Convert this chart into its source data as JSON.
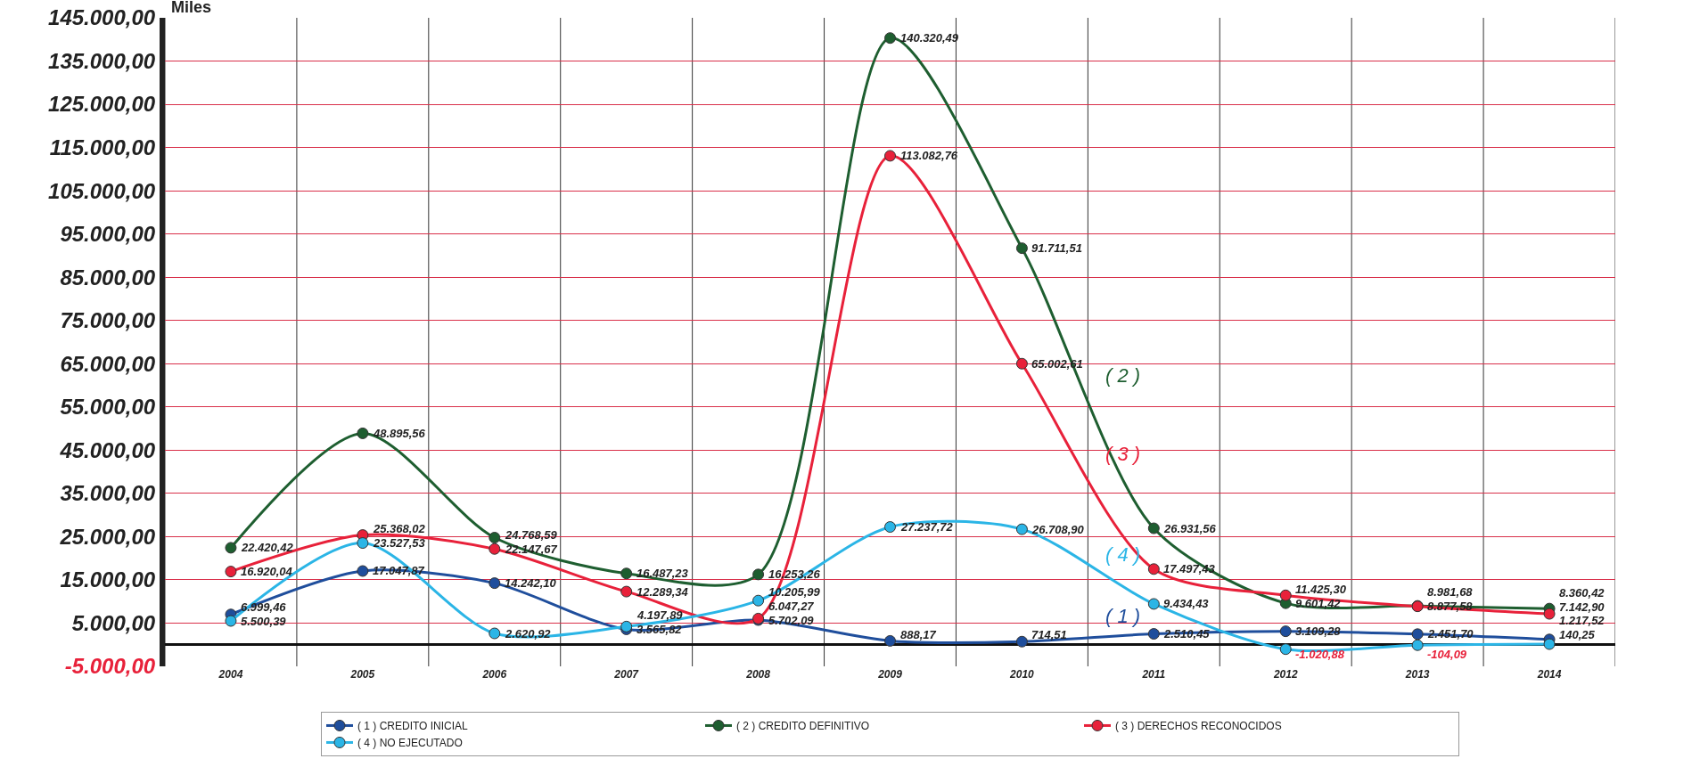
{
  "chart_data": {
    "type": "line",
    "ylabel": "Miles",
    "categories": [
      "2004",
      "2005",
      "2006",
      "2007",
      "2008",
      "2009",
      "2010",
      "2011",
      "2012",
      "2013",
      "2014"
    ],
    "series": [
      {
        "name": "( 1 ) CREDITO INICIAL",
        "color": "#1f4e9c",
        "values": [
          6999.46,
          17047.87,
          14242.1,
          3565.82,
          5702.09,
          888.17,
          714.51,
          2510.45,
          3109.28,
          2451.7,
          1217.52
        ],
        "value_labels": [
          "6.999,46",
          "17.047,87",
          "14.242,10",
          "3.565,82",
          "5.702,09",
          "888,17",
          "714,51",
          "2.510,45",
          "3.109,28",
          "2.451,70",
          "1.217,52"
        ]
      },
      {
        "name": "( 2 ) CREDITO DEFINITIVO",
        "color": "#1e5e30",
        "values": [
          22420.42,
          48895.56,
          24768.59,
          16487.23,
          16253.26,
          140320.49,
          91711.51,
          26931.56,
          9601.42,
          8981.68,
          8360.42
        ],
        "value_labels": [
          "22.420,42",
          "48.895,56",
          "24.768,59",
          "16.487,23",
          "16.253,26",
          "140.320,49",
          "91.711,51",
          "26.931,56",
          "9.601,42",
          "8.981,68",
          "8.360,42"
        ]
      },
      {
        "name": "( 3 ) DERECHOS RECONOCIDOS",
        "color": "#e8213a",
        "values": [
          16920.04,
          25368.02,
          22147.67,
          12289.34,
          6047.27,
          113082.76,
          65002.61,
          17497.43,
          11425.3,
          8877.58,
          7142.9
        ],
        "value_labels": [
          "16.920,04",
          "25.368,02",
          "22.147,67",
          "12.289,34",
          "6.047,27",
          "113.082,76",
          "65.002,61",
          "17.497,43",
          "11.425,30",
          "8.877,58",
          "7.142,90"
        ]
      },
      {
        "name": "( 4 ) NO EJECUTADO",
        "color": "#2bb5e6",
        "values": [
          5500.39,
          23527.53,
          2620.92,
          4197.89,
          10205.99,
          27237.72,
          26708.9,
          9434.43,
          -1020.88,
          -104.09,
          140.25
        ],
        "value_labels": [
          "5.500,39",
          "23.527,53",
          "2.620,92",
          "4.197,89",
          "10.205,99",
          "27.237,72",
          "26.708,90",
          "9.434,43",
          "-1.020,88",
          "-104,09",
          "140,25"
        ]
      }
    ],
    "annotations": [
      "( 1 )",
      "( 2 )",
      "( 3 )",
      "( 4 )"
    ],
    "ylim": [
      -5000,
      145000
    ],
    "yticks": [
      {
        "value": -5000,
        "label": "-5.000,00"
      },
      {
        "value": 5000,
        "label": "5.000,00"
      },
      {
        "value": 15000,
        "label": "15.000,00"
      },
      {
        "value": 25000,
        "label": "25.000,00"
      },
      {
        "value": 35000,
        "label": "35.000,00"
      },
      {
        "value": 45000,
        "label": "45.000,00"
      },
      {
        "value": 55000,
        "label": "55.000,00"
      },
      {
        "value": 65000,
        "label": "65.000,00"
      },
      {
        "value": 75000,
        "label": "75.000,00"
      },
      {
        "value": 85000,
        "label": "85.000,00"
      },
      {
        "value": 95000,
        "label": "95.000,00"
      },
      {
        "value": 105000,
        "label": "105.000,00"
      },
      {
        "value": 115000,
        "label": "115.000,00"
      },
      {
        "value": 125000,
        "label": "125.000,00"
      },
      {
        "value": 135000,
        "label": "135.000,00"
      },
      {
        "value": 145000,
        "label": "145.000,00"
      }
    ],
    "grid": true,
    "legend": "bottom",
    "marker": "circle",
    "line_style": "solid"
  }
}
